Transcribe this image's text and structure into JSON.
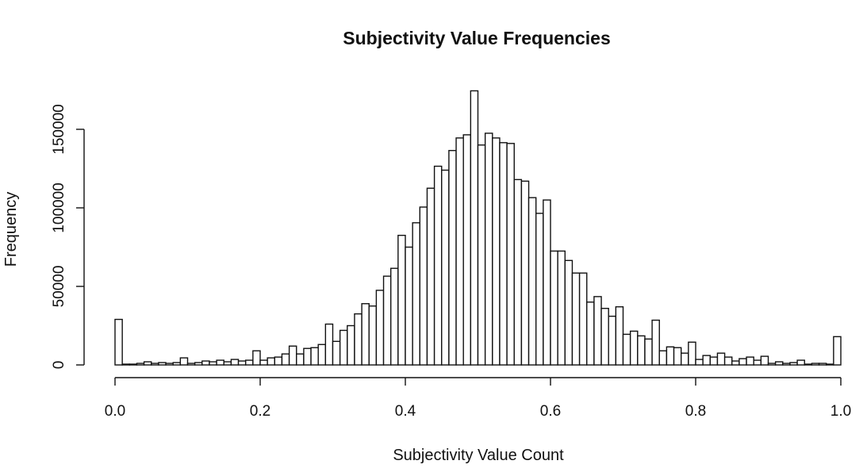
{
  "chart_data": {
    "type": "bar",
    "title": "Subjectivity Value Frequencies",
    "xlabel": "Subjectivity Value Count",
    "ylabel": "Frequency",
    "xlim": [
      0,
      1
    ],
    "ylim": [
      0,
      175000
    ],
    "bin_width": 0.01,
    "x_ticks": [
      "0.0",
      "0.2",
      "0.4",
      "0.6",
      "0.8",
      "1.0"
    ],
    "y_ticks": [
      "0",
      "50000",
      "100000",
      "150000"
    ],
    "grid": false,
    "legend": "none",
    "values": [
      29000,
      500,
      500,
      1000,
      2000,
      1000,
      1500,
      1000,
      1500,
      4500,
      1000,
      1500,
      2500,
      2000,
      3000,
      2000,
      3500,
      2500,
      3000,
      9000,
      3000,
      4500,
      5000,
      7000,
      12000,
      7000,
      10500,
      11000,
      13000,
      26000,
      15000,
      22000,
      25000,
      32500,
      39000,
      37500,
      47500,
      56500,
      61500,
      82500,
      75000,
      90500,
      100500,
      112500,
      126500,
      124000,
      136500,
      144500,
      146500,
      174500,
      140000,
      147500,
      144500,
      141500,
      141000,
      118000,
      117000,
      106500,
      96500,
      105000,
      72500,
      72500,
      66500,
      58500,
      58500,
      40000,
      43500,
      36000,
      31000,
      37000,
      19500,
      21500,
      18500,
      16500,
      28500,
      9000,
      11500,
      11000,
      7500,
      14500,
      3500,
      6000,
      5000,
      7500,
      5000,
      2500,
      4000,
      5000,
      3000,
      5500,
      1000,
      2000,
      1000,
      1500,
      3000,
      500,
      1000,
      1000,
      500,
      18000
    ]
  }
}
